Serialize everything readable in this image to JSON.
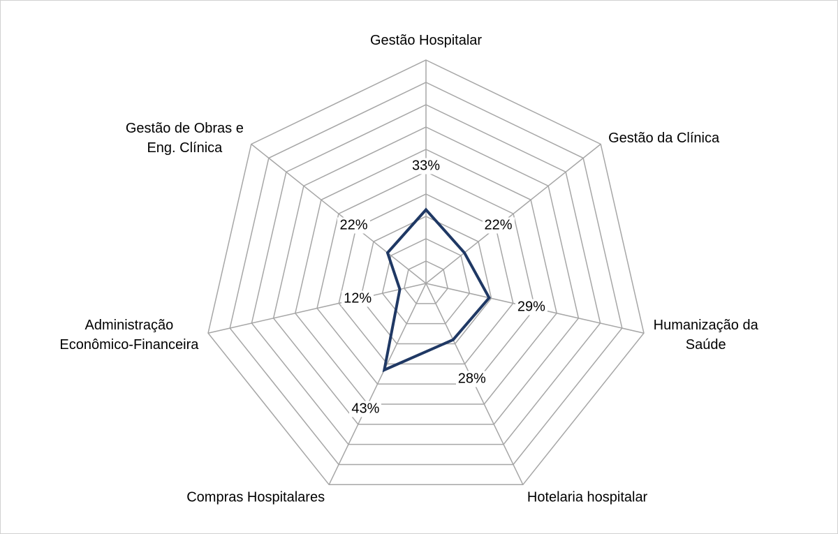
{
  "chart_data": {
    "type": "radar",
    "categories": [
      "Gestão Hospitalar",
      "Gestão da Clínica",
      "Humanização da\nSaúde",
      "Hotelaria hospitalar",
      "Compras Hospitalares",
      "Administração\nEconômico-Financeira",
      "Gestão de Obras e\nEng. Clínica"
    ],
    "values": [
      33,
      22,
      29,
      28,
      43,
      12,
      22
    ],
    "value_labels": [
      "33%",
      "22%",
      "29%",
      "28%",
      "43%",
      "12%",
      "22%"
    ],
    "color": "#1f3864",
    "ylim": [
      0,
      100
    ],
    "yticks": [
      0,
      10,
      20,
      30,
      40,
      50,
      60,
      70,
      80,
      90,
      100
    ],
    "tick_labels": false,
    "grid": true
  }
}
